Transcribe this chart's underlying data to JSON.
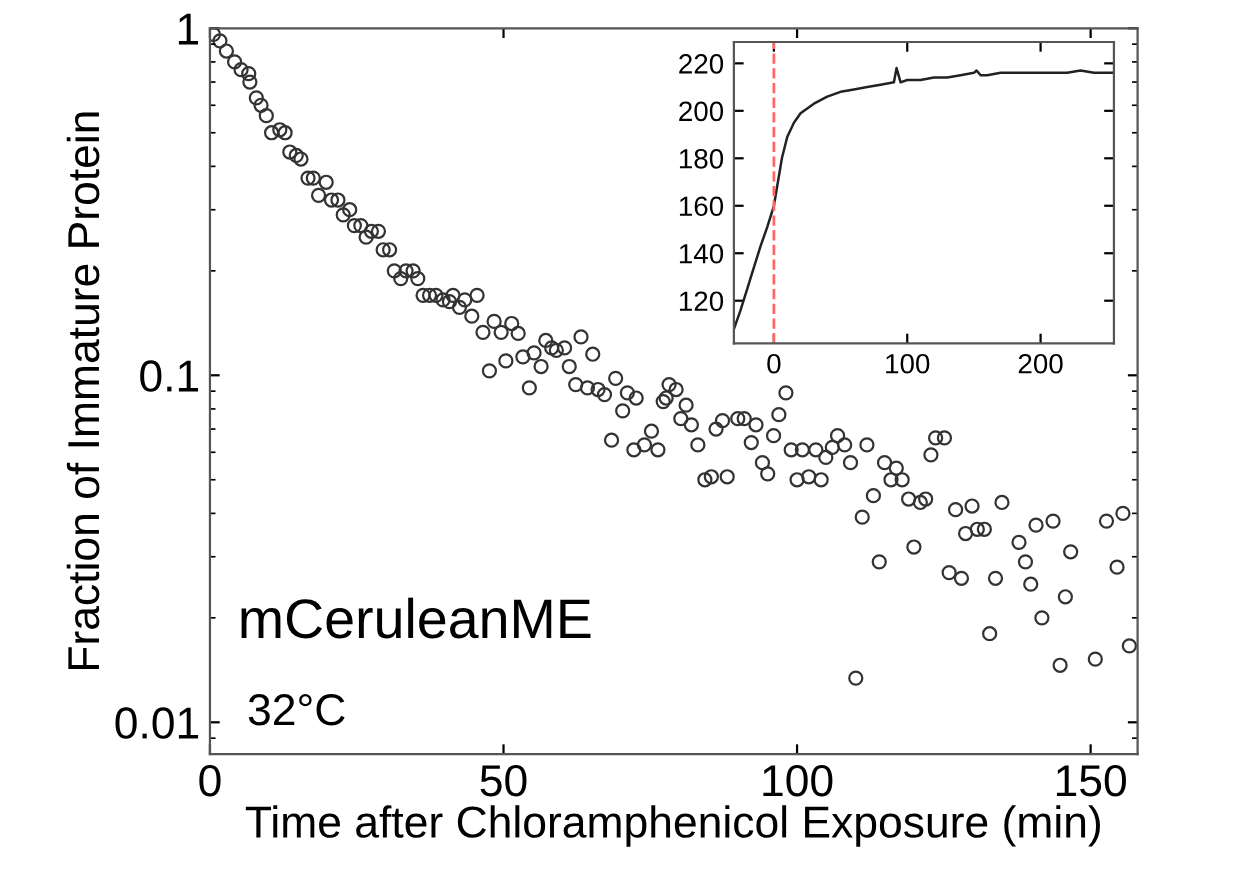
{
  "chart_data": [
    {
      "type": "scatter",
      "xlabel": "Time after Chloramphenicol Exposure (min)",
      "ylabel": "Fraction of Immature Protein",
      "log": "y",
      "xlim": [
        0,
        158
      ],
      "ylim": [
        0.0081,
        1
      ],
      "xticks": [
        0,
        50,
        100,
        150
      ],
      "yticks": [
        {
          "value": 0.01,
          "label": "0.01"
        },
        {
          "value": 0.1,
          "label": "0.1"
        },
        {
          "value": 1,
          "label": "1"
        }
      ],
      "marker": "circle",
      "grid": false,
      "annotations": [
        "mCeruleanME",
        "32°C"
      ],
      "series": [
        {
          "color": "#333333",
          "x": [
            0.6,
            1.7,
            2.8,
            4.2,
            5.3,
            6.6,
            6.8,
            7.9,
            8.7,
            9.6,
            10.5,
            11.9,
            12.8,
            13.6,
            14.7,
            15.5,
            16.7,
            17.6,
            18.5,
            19.8,
            20.7,
            21.8,
            22.7,
            23.8,
            24.6,
            25.7,
            26.6,
            27.5,
            28.7,
            29.5,
            30.6,
            31.4,
            32.5,
            33.4,
            34.6,
            35.4,
            36.3,
            37.4,
            38.5,
            39.7,
            40.8,
            41.4,
            42.5,
            43.4,
            44.6,
            45.5,
            46.5,
            47.6,
            48.4,
            49.6,
            50.4,
            51.4,
            52.5,
            53.3,
            54.4,
            55.2,
            56.4,
            57.2,
            58.2,
            59.0,
            60.4,
            61.2,
            62.3,
            63.2,
            64.3,
            65.2,
            66.1,
            67.2,
            68.4,
            69.1,
            70.3,
            71.1,
            72.2,
            72.6,
            74.0,
            75.2,
            76.3,
            77.2,
            77.7,
            78.2,
            79.4,
            80.2,
            81.1,
            82.0,
            83.1,
            84.3,
            85.4,
            86.2,
            87.3,
            88.1,
            89.9,
            91.0,
            92.2,
            93.0,
            94.1,
            95.0,
            96.0,
            96.9,
            98.1,
            99.0,
            100.0,
            100.9,
            102.0,
            103.2,
            104.1,
            104.9,
            106.0,
            106.9,
            108.1,
            109.1,
            110.0,
            111.1,
            111.9,
            113.0,
            114.0,
            114.9,
            116.0,
            116.9,
            117.9,
            119.0,
            119.9,
            121.0,
            121.9,
            122.8,
            123.6,
            125.1,
            125.9,
            127.0,
            128.0,
            128.7,
            129.8,
            130.7,
            131.9,
            132.8,
            133.8,
            134.9,
            137.8,
            138.9,
            139.8,
            140.7,
            141.7,
            143.6,
            144.8,
            145.7,
            146.6,
            150.8,
            152.7,
            154.5,
            155.5,
            156.6
          ],
          "values": [
            0.96,
            0.92,
            0.86,
            0.8,
            0.76,
            0.74,
            0.7,
            0.63,
            0.6,
            0.56,
            0.5,
            0.51,
            0.5,
            0.44,
            0.43,
            0.42,
            0.37,
            0.37,
            0.33,
            0.36,
            0.32,
            0.32,
            0.29,
            0.3,
            0.27,
            0.27,
            0.25,
            0.26,
            0.26,
            0.23,
            0.23,
            0.2,
            0.19,
            0.2,
            0.2,
            0.19,
            0.17,
            0.17,
            0.17,
            0.165,
            0.163,
            0.17,
            0.157,
            0.165,
            0.148,
            0.17,
            0.133,
            0.103,
            0.143,
            0.133,
            0.11,
            0.141,
            0.132,
            0.113,
            0.092,
            0.116,
            0.106,
            0.126,
            0.12,
            0.118,
            0.12,
            0.106,
            0.094,
            0.129,
            0.092,
            0.115,
            0.091,
            0.088,
            0.065,
            0.098,
            0.079,
            0.089,
            0.061,
            0.086,
            0.063,
            0.069,
            0.061,
            0.084,
            0.086,
            0.094,
            0.091,
            0.075,
            0.082,
            0.072,
            0.063,
            0.05,
            0.051,
            0.07,
            0.074,
            0.051,
            0.075,
            0.075,
            0.064,
            0.072,
            0.056,
            0.052,
            0.067,
            0.077,
            0.089,
            0.061,
            0.05,
            0.061,
            0.051,
            0.061,
            0.05,
            0.058,
            0.062,
            0.067,
            0.063,
            0.056,
            0.0134,
            0.039,
            0.063,
            0.045,
            0.029,
            0.056,
            0.05,
            0.054,
            0.05,
            0.044,
            0.032,
            0.043,
            0.044,
            0.059,
            0.066,
            0.066,
            0.027,
            0.041,
            0.026,
            0.035,
            0.042,
            0.036,
            0.036,
            0.018,
            0.026,
            0.043,
            0.033,
            0.029,
            0.025,
            0.037,
            0.02,
            0.038,
            0.0146,
            0.023,
            0.031,
            0.0152,
            0.038,
            0.028,
            0.04,
            0.0166
          ]
        }
      ]
    },
    {
      "type": "line",
      "xlim": [
        -30,
        255
      ],
      "ylim": [
        102,
        229
      ],
      "xticks": [
        0,
        100,
        200
      ],
      "yticks": [
        120,
        140,
        160,
        180,
        200,
        220
      ],
      "grid": false,
      "marker": "none",
      "ref_lines": [
        {
          "axis": "x",
          "value": 0,
          "color": "#ff6666",
          "line_style": "dashed"
        }
      ],
      "series": [
        {
          "color": "#222222",
          "x": [
            -30,
            -25,
            -20,
            -15,
            -10,
            -5,
            0,
            3,
            6,
            10,
            15,
            20,
            30,
            40,
            50,
            60,
            70,
            80,
            90,
            92,
            95,
            100,
            110,
            120,
            130,
            140,
            150,
            152,
            155,
            160,
            170,
            180,
            190,
            200,
            210,
            220,
            230,
            240,
            250,
            255
          ],
          "values": [
            108,
            116,
            125,
            134,
            143,
            151,
            160,
            170,
            180,
            189,
            195,
            199,
            203,
            206,
            208,
            209,
            210,
            211,
            212,
            218,
            212,
            213,
            213,
            214,
            214,
            215,
            216,
            217,
            215,
            215,
            216,
            216,
            216,
            216,
            216,
            216,
            217,
            216,
            216,
            216
          ]
        }
      ]
    }
  ]
}
